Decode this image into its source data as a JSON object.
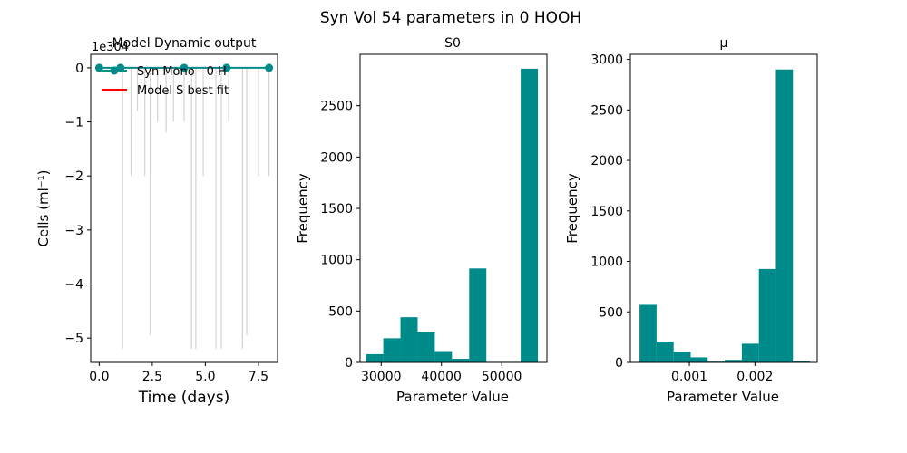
{
  "figure": {
    "suptitle": "Syn Vol 54  parameters in 0 HOOH"
  },
  "chart_data": [
    {
      "type": "line",
      "title": "Model Dynamic output",
      "xlabel": "Time (days)",
      "ylabel": "Cells (ml⁻¹)",
      "offset_text": "1e304",
      "xlim": [
        -0.4,
        8.4
      ],
      "ylim": [
        -5.45,
        0.25
      ],
      "xticks": [
        0.0,
        2.5,
        5.0,
        7.5
      ],
      "xtick_labels": [
        "0.0",
        "2.5",
        "5.0",
        "7.5"
      ],
      "yticks": [
        0,
        -1,
        -2,
        -3,
        -4,
        -5
      ],
      "ytick_labels": [
        "0",
        "−1",
        "−2",
        "−3",
        "−4",
        "−5"
      ],
      "legend": {
        "position": "upper-left",
        "entries": [
          "Syn Mono - 0 H",
          "Model S best fit"
        ]
      },
      "series": [
        {
          "name": "Syn Mono - 0 H",
          "color": "#008b8b",
          "marker": "circle",
          "x": [
            0,
            1,
            4,
            6,
            8
          ],
          "y": [
            0,
            0,
            0,
            0,
            0
          ]
        }
      ],
      "model_lines": {
        "color": "#d3d3d3",
        "x": [
          1.1,
          1.5,
          1.8,
          2.15,
          2.4,
          2.75,
          3.15,
          3.5,
          4.0,
          4.35,
          4.55,
          4.9,
          5.5,
          5.75,
          6.1,
          6.75,
          6.95,
          7.5,
          8.0
        ],
        "y": [
          -5.2,
          -2.0,
          -0.8,
          -2.0,
          -4.95,
          -1.0,
          -1.2,
          -1.0,
          -1.0,
          -5.2,
          -5.2,
          -2.0,
          -5.2,
          -5.2,
          -1.0,
          -5.2,
          -4.95,
          -2.0,
          -2.0
        ]
      },
      "best_fit": {
        "name": "Model S best fit",
        "color": "#ff0000"
      }
    },
    {
      "type": "bar",
      "title": "S0",
      "xlabel": "Parameter Value",
      "ylabel": "Frequency",
      "xlim": [
        26500,
        57500
      ],
      "ylim": [
        0,
        3000
      ],
      "xticks": [
        30000,
        40000,
        50000
      ],
      "yticks": [
        0,
        500,
        1000,
        1500,
        2000,
        2500
      ],
      "color": "#008b8b",
      "bins": [
        {
          "x0": 27500,
          "x1": 30350,
          "value": 80
        },
        {
          "x0": 30350,
          "x1": 33200,
          "value": 235
        },
        {
          "x0": 33200,
          "x1": 36050,
          "value": 440
        },
        {
          "x0": 36050,
          "x1": 38900,
          "value": 300
        },
        {
          "x0": 38900,
          "x1": 41750,
          "value": 110
        },
        {
          "x0": 41750,
          "x1": 44600,
          "value": 35
        },
        {
          "x0": 44600,
          "x1": 47450,
          "value": 915
        },
        {
          "x0": 47450,
          "x1": 50300,
          "value": 5
        },
        {
          "x0": 50300,
          "x1": 53150,
          "value": 5
        },
        {
          "x0": 53150,
          "x1": 56000,
          "value": 2860
        }
      ]
    },
    {
      "type": "bar",
      "title": "μ",
      "xlabel": "Parameter Value",
      "ylabel": "Frequency",
      "xlim": [
        0.0001,
        0.00295
      ],
      "ylim": [
        0,
        3050
      ],
      "xticks": [
        0.001,
        0.002
      ],
      "yticks": [
        0,
        500,
        1000,
        1500,
        2000,
        2500,
        3000
      ],
      "color": "#008b8b",
      "bins": [
        {
          "x0": 0.00024,
          "x1": 0.0005,
          "value": 570
        },
        {
          "x0": 0.0005,
          "x1": 0.00076,
          "value": 205
        },
        {
          "x0": 0.00076,
          "x1": 0.00102,
          "value": 105
        },
        {
          "x0": 0.00102,
          "x1": 0.00128,
          "value": 50
        },
        {
          "x0": 0.00128,
          "x1": 0.00154,
          "value": 8
        },
        {
          "x0": 0.00154,
          "x1": 0.0018,
          "value": 25
        },
        {
          "x0": 0.0018,
          "x1": 0.00206,
          "value": 185
        },
        {
          "x0": 0.00206,
          "x1": 0.00232,
          "value": 925
        },
        {
          "x0": 0.00232,
          "x1": 0.00258,
          "value": 2900
        },
        {
          "x0": 0.00258,
          "x1": 0.00284,
          "value": 10
        }
      ]
    }
  ]
}
